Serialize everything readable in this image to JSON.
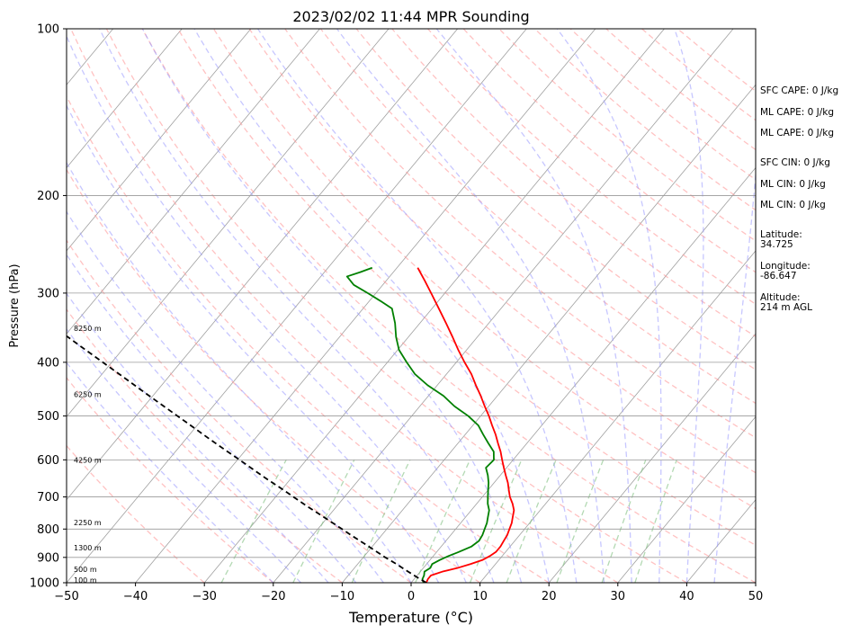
{
  "chart_data": {
    "type": "line",
    "title": "2023/02/02 11:44 MPR Sounding",
    "xlabel": "Temperature (°C)",
    "ylabel": "Pressure (hPa)",
    "xlim": [
      -50,
      50
    ],
    "ylim": [
      1000,
      100
    ],
    "y_scale": "log",
    "x_ticks": [
      -50,
      -40,
      -30,
      -20,
      -10,
      0,
      10,
      20,
      30,
      40,
      50
    ],
    "x_tick_labels": [
      "−50",
      "−40",
      "−30",
      "−20",
      "−10",
      "0",
      "10",
      "20",
      "30",
      "40",
      "50"
    ],
    "y_ticks": [
      1000,
      900,
      800,
      700,
      600,
      500,
      400,
      300,
      200,
      100
    ],
    "y_tick_labels": [
      "1000",
      "900",
      "800",
      "700",
      "600",
      "500",
      "400",
      "300",
      "200",
      "100"
    ],
    "grid": true,
    "skew": true,
    "colors": {
      "temperature": "#ff0000",
      "dewpoint": "#008000",
      "parcel": "#000000",
      "isotherm": "#a0a0a0",
      "dry_adiabat": "#ff9999",
      "moist_adiabat": "#9999ff",
      "mixing_ratio": "#80c080"
    },
    "series": [
      {
        "key": "temperature",
        "style": "solid",
        "pressure": [
          1000,
          985,
          970,
          955,
          940,
          925,
          910,
          895,
          880,
          860,
          840,
          820,
          800,
          780,
          760,
          740,
          720,
          700,
          680,
          660,
          640,
          620,
          600,
          580,
          560,
          540,
          520,
          500,
          480,
          460,
          440,
          420,
          400,
          380,
          360,
          340,
          320,
          300,
          285,
          270
        ],
        "temp": [
          2.2,
          2.0,
          2.0,
          3.2,
          5.0,
          6.4,
          7.6,
          8.2,
          8.6,
          8.6,
          8.4,
          8.2,
          7.8,
          7.4,
          6.8,
          6.2,
          5.2,
          4.0,
          3.0,
          2.0,
          0.8,
          -0.4,
          -1.6,
          -2.8,
          -4.2,
          -5.6,
          -7.2,
          -8.8,
          -10.6,
          -12.4,
          -14.4,
          -16.4,
          -18.8,
          -21.2,
          -23.6,
          -26.2,
          -29.0,
          -32.0,
          -34.4,
          -37.0
        ]
      },
      {
        "key": "dewpoint",
        "style": "solid",
        "pressure": [
          1000,
          985,
          970,
          955,
          940,
          925,
          910,
          895,
          880,
          860,
          840,
          820,
          800,
          780,
          760,
          740,
          720,
          700,
          680,
          660,
          640,
          620,
          600,
          580,
          560,
          540,
          520,
          500,
          480,
          460,
          440,
          420,
          400,
          380,
          360,
          340,
          320,
          310,
          300,
          290,
          280,
          275,
          270
        ],
        "temp": [
          1.8,
          1.2,
          1.0,
          0.6,
          1.0,
          0.8,
          1.4,
          2.2,
          3.2,
          4.4,
          4.8,
          4.6,
          4.2,
          3.8,
          3.2,
          2.6,
          1.6,
          0.8,
          0.0,
          -0.8,
          -1.8,
          -3.0,
          -2.8,
          -3.8,
          -5.6,
          -7.4,
          -9.2,
          -11.8,
          -15.0,
          -17.8,
          -21.4,
          -24.6,
          -27.2,
          -29.8,
          -31.8,
          -33.6,
          -35.8,
          -38.4,
          -41.2,
          -44.2,
          -46.2,
          -44.8,
          -43.6
        ]
      },
      {
        "key": "parcel",
        "style": "dashed",
        "pressure": [
          1000,
          975,
          950,
          925,
          900,
          875,
          850,
          825,
          800,
          775,
          750,
          725,
          700,
          675,
          650,
          625,
          600,
          575,
          550,
          525,
          500,
          475,
          450,
          425,
          400,
          375,
          350,
          325,
          300,
          285,
          270
        ],
        "temp": [
          2.2,
          0.0,
          -2.2,
          -4.4,
          -6.8,
          -9.1,
          -11.5,
          -14.0,
          -16.5,
          -19.1,
          -21.8,
          -24.6,
          -27.4,
          -30.3,
          -33.4,
          -36.5,
          -39.7,
          -43.1,
          -46.6,
          -50.2,
          -54.0,
          -58.0,
          -62.2,
          -66.6,
          -71.3,
          -76.3,
          -81.6,
          -87.3,
          -93.4,
          -97.3,
          -101.5
        ]
      }
    ],
    "altitude_labels": [
      {
        "text": "100 m",
        "pressure": 988
      },
      {
        "text": "500 m",
        "pressure": 945
      },
      {
        "text": "1300 m",
        "pressure": 865
      },
      {
        "text": "2250 m",
        "pressure": 778
      },
      {
        "text": "4250 m",
        "pressure": 600
      },
      {
        "text": "6250 m",
        "pressure": 457
      },
      {
        "text": "8250 m",
        "pressure": 347
      }
    ],
    "annotations": [
      "SFC CAPE: 0 J/kg",
      "ML CAPE: 0 J/kg",
      "ML CAPE: 0 J/kg",
      "SFC CIN: 0 J/kg",
      "ML CIN: 0 J/kg",
      "ML CIN: 0 J/kg",
      "Latitude:",
      "34.725",
      "Longitude:",
      "-86.647",
      "Altitude:",
      "214 m AGL"
    ]
  }
}
